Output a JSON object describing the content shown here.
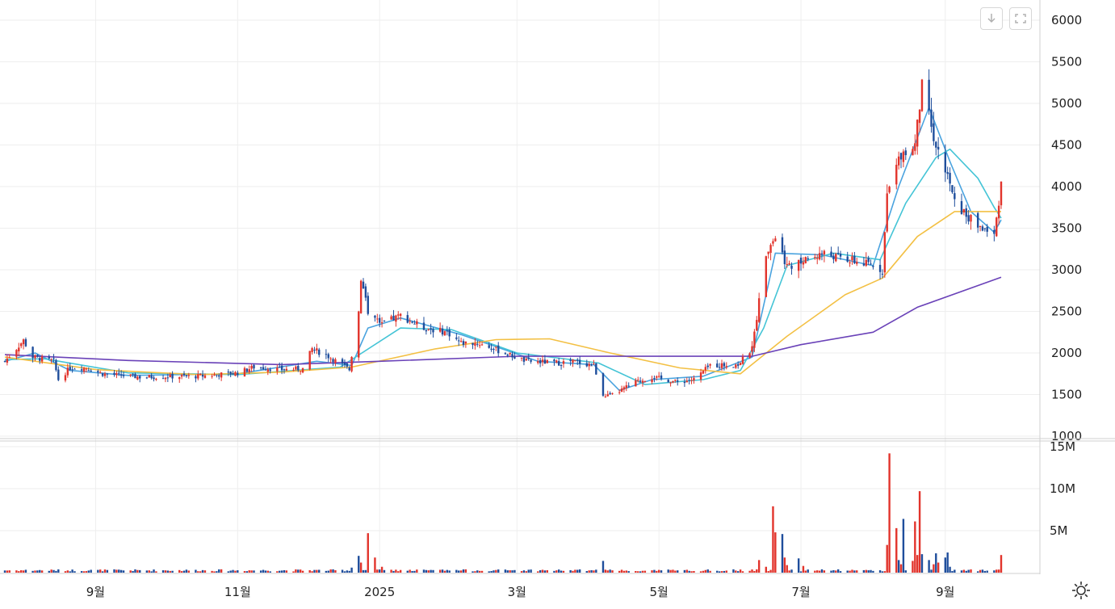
{
  "toolbar": {
    "download_icon": "download-icon",
    "reset_icon": "reset-zoom-icon",
    "settings_icon": "gear-icon"
  },
  "colors": {
    "up": "#e2342c",
    "down": "#1f4e9c",
    "ma5": "#4aa3df",
    "ma20": "#44c4d6",
    "ma60": "#f3c044",
    "ma120": "#6a42b8",
    "grid": "#eeeeee"
  },
  "chart_data": [
    {
      "type": "candlestick",
      "title": "",
      "y_ticks": [
        "6000",
        "5500",
        "5000",
        "4500",
        "4000",
        "3500",
        "3000",
        "2500",
        "2000",
        "1500",
        "1000"
      ],
      "ylim": [
        1000,
        6000
      ],
      "x_ticks": [
        {
          "label": "9월",
          "date": "2024-09-01"
        },
        {
          "label": "11월",
          "date": "2024-11-01"
        },
        {
          "label": "2025",
          "date": "2025-01-01"
        },
        {
          "label": "3월",
          "date": "2025-03-01"
        },
        {
          "label": "5월",
          "date": "2025-05-01"
        },
        {
          "label": "7월",
          "date": "2025-07-01"
        },
        {
          "label": "9월",
          "date": "2025-09-01"
        }
      ],
      "xlim": [
        "2024-07-24",
        "2025-09-25"
      ],
      "grid": true,
      "close_anchors": [
        [
          "2024-07-24",
          1900
        ],
        [
          "2024-08-01",
          2150
        ],
        [
          "2024-08-05",
          1950
        ],
        [
          "2024-08-14",
          1900
        ],
        [
          "2024-08-16",
          1680
        ],
        [
          "2024-08-21",
          1820
        ],
        [
          "2024-08-28",
          1820
        ],
        [
          "2024-09-04",
          1750
        ],
        [
          "2024-09-20",
          1710
        ],
        [
          "2024-10-15",
          1720
        ],
        [
          "2024-11-01",
          1760
        ],
        [
          "2024-11-08",
          1830
        ],
        [
          "2024-11-20",
          1800
        ],
        [
          "2024-11-29",
          1810
        ],
        [
          "2024-12-03",
          2050
        ],
        [
          "2024-12-10",
          1960
        ],
        [
          "2024-12-19",
          1800
        ],
        [
          "2024-12-23",
          2500
        ],
        [
          "2024-12-24",
          2900
        ],
        [
          "2024-12-27",
          2500
        ],
        [
          "2025-01-02",
          2350
        ],
        [
          "2025-01-10",
          2450
        ],
        [
          "2025-01-20",
          2300
        ],
        [
          "2025-01-30",
          2250
        ],
        [
          "2025-02-05",
          2120
        ],
        [
          "2025-02-12",
          2120
        ],
        [
          "2025-02-19",
          2050
        ],
        [
          "2025-03-05",
          1900
        ],
        [
          "2025-03-19",
          1880
        ],
        [
          "2025-03-25",
          1900
        ],
        [
          "2025-04-03",
          1850
        ],
        [
          "2025-04-07",
          1500
        ],
        [
          "2025-04-10",
          1480
        ],
        [
          "2025-04-21",
          1650
        ],
        [
          "2025-04-28",
          1710
        ],
        [
          "2025-05-09",
          1650
        ],
        [
          "2025-05-16",
          1680
        ],
        [
          "2025-05-23",
          1850
        ],
        [
          "2025-06-04",
          1860
        ],
        [
          "2025-06-10",
          2050
        ],
        [
          "2025-06-16",
          3200
        ],
        [
          "2025-06-20",
          3400
        ],
        [
          "2025-06-25",
          3050
        ],
        [
          "2025-07-02",
          3100
        ],
        [
          "2025-07-10",
          3200
        ],
        [
          "2025-07-24",
          3100
        ],
        [
          "2025-08-01",
          3050
        ],
        [
          "2025-08-05",
          3000
        ],
        [
          "2025-08-07",
          3900
        ],
        [
          "2025-08-13",
          4400
        ],
        [
          "2025-08-19",
          4500
        ],
        [
          "2025-08-22",
          5200
        ],
        [
          "2025-08-27",
          4600
        ],
        [
          "2025-09-02",
          4100
        ],
        [
          "2025-09-05",
          3800
        ],
        [
          "2025-09-12",
          3600
        ],
        [
          "2025-09-22",
          3400
        ],
        [
          "2025-09-25",
          4050
        ]
      ],
      "ma_series": [
        {
          "name": "5",
          "color_key": "ma5",
          "points": [
            [
              "2024-07-24",
              1900
            ],
            [
              "2024-08-06",
              2000
            ],
            [
              "2024-08-21",
              1790
            ],
            [
              "2024-09-15",
              1730
            ],
            [
              "2024-11-01",
              1750
            ],
            [
              "2024-12-05",
              1900
            ],
            [
              "2024-12-20",
              1850
            ],
            [
              "2024-12-27",
              2300
            ],
            [
              "2025-01-10",
              2420
            ],
            [
              "2025-02-05",
              2220
            ],
            [
              "2025-03-10",
              1900
            ],
            [
              "2025-04-03",
              1860
            ],
            [
              "2025-04-14",
              1550
            ],
            [
              "2025-04-28",
              1680
            ],
            [
              "2025-05-20",
              1720
            ],
            [
              "2025-06-10",
              1950
            ],
            [
              "2025-06-20",
              3200
            ],
            [
              "2025-07-10",
              3180
            ],
            [
              "2025-08-01",
              3050
            ],
            [
              "2025-08-12",
              4000
            ],
            [
              "2025-08-25",
              4950
            ],
            [
              "2025-09-03",
              4300
            ],
            [
              "2025-09-12",
              3700
            ],
            [
              "2025-09-22",
              3450
            ],
            [
              "2025-09-25",
              3600
            ]
          ]
        },
        {
          "name": "20",
          "color_key": "ma20",
          "points": [
            [
              "2024-07-24",
              1920
            ],
            [
              "2024-08-10",
              1930
            ],
            [
              "2024-09-15",
              1760
            ],
            [
              "2024-11-01",
              1740
            ],
            [
              "2024-12-15",
              1830
            ],
            [
              "2025-01-10",
              2300
            ],
            [
              "2025-02-01",
              2280
            ],
            [
              "2025-03-01",
              2000
            ],
            [
              "2025-04-05",
              1880
            ],
            [
              "2025-04-25",
              1620
            ],
            [
              "2025-05-20",
              1680
            ],
            [
              "2025-06-05",
              1790
            ],
            [
              "2025-06-15",
              2300
            ],
            [
              "2025-06-25",
              3050
            ],
            [
              "2025-07-15",
              3200
            ],
            [
              "2025-08-04",
              3120
            ],
            [
              "2025-08-15",
              3800
            ],
            [
              "2025-08-28",
              4350
            ],
            [
              "2025-09-03",
              4450
            ],
            [
              "2025-09-15",
              4100
            ],
            [
              "2025-09-22",
              3750
            ],
            [
              "2025-09-25",
              3620
            ]
          ]
        },
        {
          "name": "60",
          "color_key": "ma60",
          "points": [
            [
              "2024-07-24",
              1950
            ],
            [
              "2024-09-01",
              1800
            ],
            [
              "2024-10-15",
              1740
            ],
            [
              "2024-11-20",
              1770
            ],
            [
              "2024-12-20",
              1830
            ],
            [
              "2025-01-25",
              2050
            ],
            [
              "2025-02-20",
              2160
            ],
            [
              "2025-03-15",
              2170
            ],
            [
              "2025-04-10",
              2000
            ],
            [
              "2025-05-10",
              1820
            ],
            [
              "2025-06-05",
              1750
            ],
            [
              "2025-06-25",
              2200
            ],
            [
              "2025-07-20",
              2700
            ],
            [
              "2025-08-05",
              2900
            ],
            [
              "2025-08-20",
              3400
            ],
            [
              "2025-09-05",
              3700
            ],
            [
              "2025-09-25",
              3700
            ]
          ]
        },
        {
          "name": "120",
          "color_key": "ma120",
          "points": [
            [
              "2024-07-24",
              1980
            ],
            [
              "2024-09-15",
              1910
            ],
            [
              "2024-11-20",
              1860
            ],
            [
              "2025-01-01",
              1900
            ],
            [
              "2025-03-01",
              1960
            ],
            [
              "2025-06-10",
              1960
            ],
            [
              "2025-07-01",
              2100
            ],
            [
              "2025-08-01",
              2250
            ],
            [
              "2025-08-20",
              2550
            ],
            [
              "2025-09-25",
              2910
            ]
          ]
        }
      ]
    },
    {
      "type": "bar",
      "title": "",
      "y_ticks": [
        "15M",
        "10M",
        "5M"
      ],
      "ylim": [
        0,
        15000000
      ],
      "spikes": [
        [
          "2024-12-20",
          600000,
          "down"
        ],
        [
          "2024-12-23",
          2000000,
          "down"
        ],
        [
          "2024-12-24",
          1200000,
          "up"
        ],
        [
          "2024-12-27",
          4700000,
          "up"
        ],
        [
          "2024-12-30",
          1800000,
          "up"
        ],
        [
          "2025-01-02",
          700000,
          "up"
        ],
        [
          "2025-04-07",
          1400000,
          "down"
        ],
        [
          "2025-06-13",
          1500000,
          "up"
        ],
        [
          "2025-06-16",
          700000,
          "up"
        ],
        [
          "2025-06-19",
          7900000,
          "up"
        ],
        [
          "2025-06-20",
          4800000,
          "up"
        ],
        [
          "2025-06-23",
          4600000,
          "down"
        ],
        [
          "2025-06-24",
          1800000,
          "up"
        ],
        [
          "2025-06-25",
          900000,
          "up"
        ],
        [
          "2025-06-30",
          1700000,
          "down"
        ],
        [
          "2025-07-02",
          800000,
          "up"
        ],
        [
          "2025-08-07",
          3300000,
          "up"
        ],
        [
          "2025-08-08",
          14200000,
          "up"
        ],
        [
          "2025-08-11",
          5300000,
          "up"
        ],
        [
          "2025-08-12",
          1500000,
          "down"
        ],
        [
          "2025-08-13",
          1000000,
          "up"
        ],
        [
          "2025-08-14",
          6400000,
          "down"
        ],
        [
          "2025-08-18",
          1400000,
          "up"
        ],
        [
          "2025-08-19",
          6100000,
          "up"
        ],
        [
          "2025-08-20",
          2100000,
          "up"
        ],
        [
          "2025-08-21",
          9700000,
          "up"
        ],
        [
          "2025-08-22",
          2200000,
          "down"
        ],
        [
          "2025-08-25",
          1500000,
          "down"
        ],
        [
          "2025-08-27",
          1000000,
          "up"
        ],
        [
          "2025-08-28",
          2300000,
          "down"
        ],
        [
          "2025-08-29",
          1200000,
          "up"
        ],
        [
          "2025-09-01",
          1800000,
          "down"
        ],
        [
          "2025-09-02",
          2400000,
          "down"
        ],
        [
          "2025-09-03",
          700000,
          "down"
        ],
        [
          "2025-09-25",
          2100000,
          "up"
        ]
      ]
    }
  ]
}
